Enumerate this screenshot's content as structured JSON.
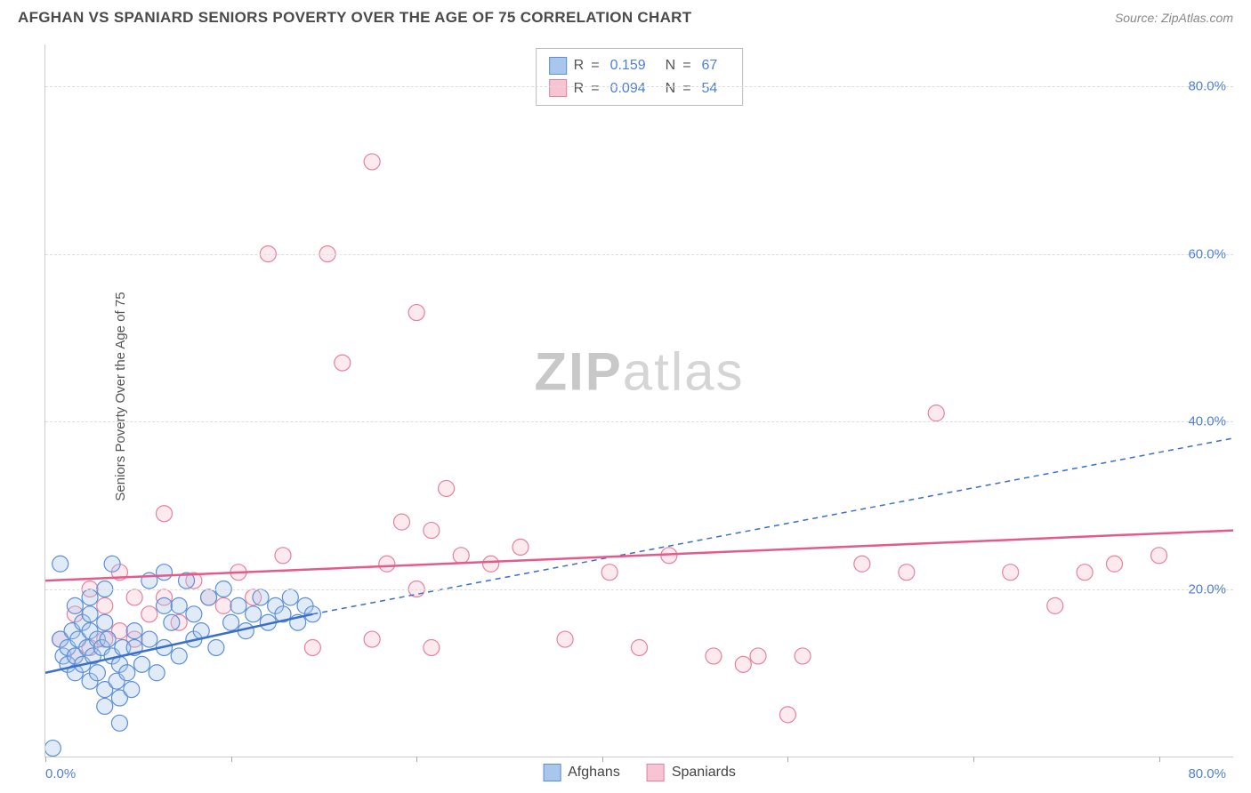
{
  "title": "AFGHAN VS SPANIARD SENIORS POVERTY OVER THE AGE OF 75 CORRELATION CHART",
  "source_label": "Source: ZipAtlas.com",
  "y_axis_label": "Seniors Poverty Over the Age of 75",
  "watermark_bold": "ZIP",
  "watermark_light": "atlas",
  "chart": {
    "type": "scatter",
    "xlim": [
      0,
      80
    ],
    "ylim": [
      0,
      85
    ],
    "x_tick_positions": [
      0,
      12.5,
      25,
      37.5,
      50,
      62.5,
      75
    ],
    "y_gridlines": [
      20,
      40,
      60,
      80
    ],
    "y_tick_labels": [
      "20.0%",
      "40.0%",
      "60.0%",
      "80.0%"
    ],
    "x_min_label": "0.0%",
    "x_max_label": "80.0%",
    "background_color": "#ffffff",
    "grid_color": "#dddddd",
    "axis_color": "#cccccc",
    "tick_label_color": "#4f7fd6",
    "marker_radius": 9,
    "marker_fill_opacity": 0.35,
    "marker_stroke_width": 1.2
  },
  "series": [
    {
      "name": "Afghans",
      "color_fill": "#a9c6ec",
      "color_stroke": "#5b8fd8",
      "R": "0.159",
      "N": "67",
      "trend_dash": "none",
      "trend_color": "#3b6fc9",
      "trend_width": 2.5,
      "trend": {
        "x1": 0,
        "y1": 10,
        "x2": 18,
        "y2": 17
      },
      "extrap_dash": "6,5",
      "extrap": {
        "x1": 18,
        "y1": 17,
        "x2": 80,
        "y2": 38
      },
      "points": [
        [
          0.5,
          1
        ],
        [
          1,
          23
        ],
        [
          1,
          14
        ],
        [
          1.2,
          12
        ],
        [
          1.5,
          11
        ],
        [
          1.5,
          13
        ],
        [
          1.8,
          15
        ],
        [
          2,
          12
        ],
        [
          2,
          10
        ],
        [
          2.2,
          14
        ],
        [
          2.5,
          16
        ],
        [
          2.5,
          11
        ],
        [
          2.8,
          13
        ],
        [
          3,
          9
        ],
        [
          3,
          15
        ],
        [
          3,
          17
        ],
        [
          3.2,
          12
        ],
        [
          3.5,
          14
        ],
        [
          3.5,
          10
        ],
        [
          3.8,
          13
        ],
        [
          4,
          8
        ],
        [
          4,
          6
        ],
        [
          4,
          16
        ],
        [
          4.2,
          14
        ],
        [
          4.5,
          23
        ],
        [
          4.5,
          12
        ],
        [
          4.8,
          9
        ],
        [
          5,
          7
        ],
        [
          5,
          4
        ],
        [
          5,
          11
        ],
        [
          5.2,
          13
        ],
        [
          5.5,
          10
        ],
        [
          5.8,
          8
        ],
        [
          6,
          15
        ],
        [
          6,
          13
        ],
        [
          6.5,
          11
        ],
        [
          7,
          21
        ],
        [
          7,
          14
        ],
        [
          7.5,
          10
        ],
        [
          8,
          18
        ],
        [
          8,
          13
        ],
        [
          8,
          22
        ],
        [
          8.5,
          16
        ],
        [
          9,
          18
        ],
        [
          9,
          12
        ],
        [
          9.5,
          21
        ],
        [
          10,
          14
        ],
        [
          10,
          17
        ],
        [
          10.5,
          15
        ],
        [
          11,
          19
        ],
        [
          11.5,
          13
        ],
        [
          12,
          20
        ],
        [
          12.5,
          16
        ],
        [
          13,
          18
        ],
        [
          13.5,
          15
        ],
        [
          14,
          17
        ],
        [
          14.5,
          19
        ],
        [
          15,
          16
        ],
        [
          15.5,
          18
        ],
        [
          16,
          17
        ],
        [
          16.5,
          19
        ],
        [
          17,
          16
        ],
        [
          17.5,
          18
        ],
        [
          18,
          17
        ],
        [
          2,
          18
        ],
        [
          3,
          19
        ],
        [
          4,
          20
        ]
      ]
    },
    {
      "name": "Spaniards",
      "color_fill": "#f6c4d2",
      "color_stroke": "#e6819f",
      "R": "0.094",
      "N": "54",
      "trend_dash": "none",
      "trend_color": "#e55a8a",
      "trend_width": 2.5,
      "trend": {
        "x1": 0,
        "y1": 21,
        "x2": 80,
        "y2": 27
      },
      "points": [
        [
          1,
          14
        ],
        [
          2,
          12
        ],
        [
          2,
          17
        ],
        [
          3,
          13
        ],
        [
          3,
          20
        ],
        [
          4,
          14
        ],
        [
          4,
          18
        ],
        [
          5,
          15
        ],
        [
          5,
          22
        ],
        [
          6,
          14
        ],
        [
          6,
          19
        ],
        [
          7,
          17
        ],
        [
          8,
          29
        ],
        [
          8,
          19
        ],
        [
          9,
          16
        ],
        [
          10,
          21
        ],
        [
          11,
          19
        ],
        [
          12,
          18
        ],
        [
          13,
          22
        ],
        [
          14,
          19
        ],
        [
          15,
          60
        ],
        [
          16,
          24
        ],
        [
          18,
          13
        ],
        [
          19,
          60
        ],
        [
          20,
          47
        ],
        [
          22,
          71
        ],
        [
          22,
          14
        ],
        [
          23,
          23
        ],
        [
          24,
          28
        ],
        [
          25,
          20
        ],
        [
          25,
          53
        ],
        [
          26,
          27
        ],
        [
          26,
          13
        ],
        [
          27,
          32
        ],
        [
          28,
          24
        ],
        [
          30,
          23
        ],
        [
          32,
          25
        ],
        [
          35,
          14
        ],
        [
          38,
          22
        ],
        [
          40,
          13
        ],
        [
          42,
          24
        ],
        [
          45,
          12
        ],
        [
          47,
          11
        ],
        [
          48,
          12
        ],
        [
          50,
          5
        ],
        [
          51,
          12
        ],
        [
          55,
          23
        ],
        [
          58,
          22
        ],
        [
          60,
          41
        ],
        [
          65,
          22
        ],
        [
          68,
          18
        ],
        [
          70,
          22
        ],
        [
          72,
          23
        ],
        [
          75,
          24
        ]
      ]
    }
  ],
  "stats_box": {
    "R_label": "R",
    "eq": "=",
    "N_label": "N"
  },
  "legend": {
    "items": [
      "Afghans",
      "Spaniards"
    ]
  }
}
